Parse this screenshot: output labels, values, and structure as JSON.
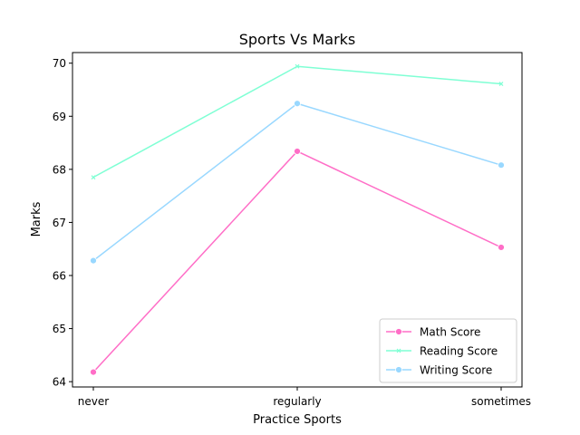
{
  "chart_data": {
    "type": "line",
    "title": "Sports Vs Marks",
    "xlabel": "Practice Sports",
    "ylabel": "Marks",
    "categories": [
      "never",
      "regularly",
      "sometimes"
    ],
    "ylim": [
      63.9,
      70.2
    ],
    "yticks": [
      64,
      65,
      66,
      67,
      68,
      69,
      70
    ],
    "grid": false,
    "legend_position": "lower-right",
    "series": [
      {
        "name": "Math Score",
        "color": "#ff6ec7",
        "marker": "circle",
        "values": [
          64.18,
          68.34,
          66.53
        ]
      },
      {
        "name": "Reading Score",
        "color": "#7fffd4",
        "marker": "x",
        "values": [
          67.85,
          69.94,
          69.61
        ]
      },
      {
        "name": "Writing Score",
        "color": "#99d8ff",
        "marker": "circle",
        "values": [
          66.28,
          69.24,
          68.08
        ]
      }
    ]
  }
}
